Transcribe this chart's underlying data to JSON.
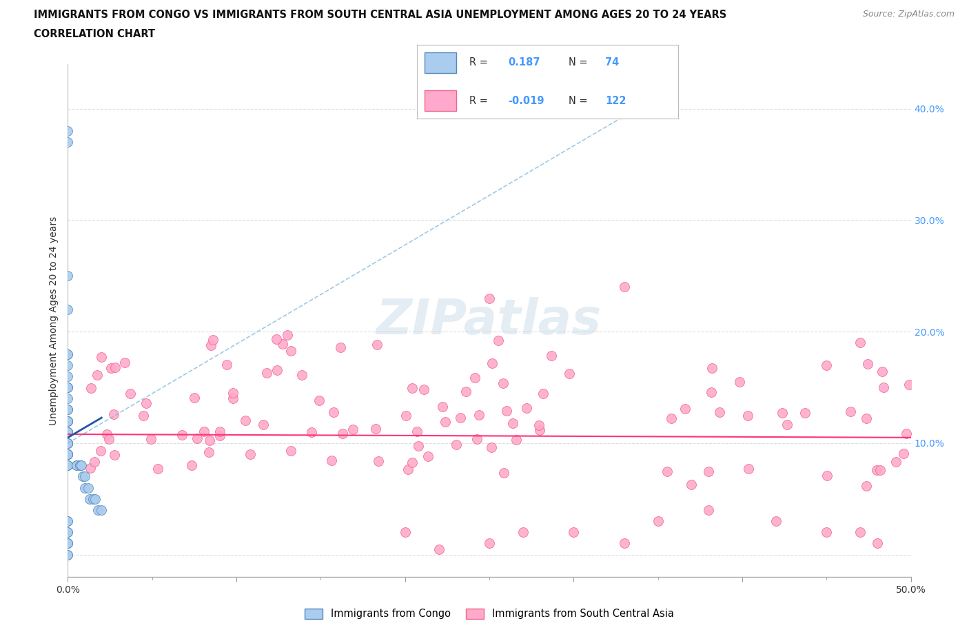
{
  "title_line1": "IMMIGRANTS FROM CONGO VS IMMIGRANTS FROM SOUTH CENTRAL ASIA UNEMPLOYMENT AMONG AGES 20 TO 24 YEARS",
  "title_line2": "CORRELATION CHART",
  "source": "Source: ZipAtlas.com",
  "ylabel": "Unemployment Among Ages 20 to 24 years",
  "xlim": [
    0.0,
    0.5
  ],
  "ylim": [
    -0.02,
    0.44
  ],
  "xticks": [
    0.0,
    0.1,
    0.2,
    0.3,
    0.4,
    0.5
  ],
  "xticklabels": [
    "0.0%",
    "",
    "",
    "",
    "",
    "50.0%"
  ],
  "yticks": [
    0.0,
    0.1,
    0.2,
    0.3,
    0.4
  ],
  "yticklabels_right": [
    "",
    "10.0%",
    "20.0%",
    "30.0%",
    "40.0%"
  ],
  "r_color": "#4499ff",
  "trendline_congo_dashed_color": "#88bbdd",
  "trendline_congo_solid_color": "#2255aa",
  "trendline_sca_color": "#ff3377",
  "background_color": "#ffffff",
  "grid_color": "#dddddd",
  "watermark": "ZIPatlas",
  "congo_scatter_color": "#aaccee",
  "congo_scatter_edge": "#5588bb",
  "sca_scatter_color": "#ffaacc",
  "sca_scatter_edge": "#ee6688",
  "legend_label_congo": "Immigrants from Congo",
  "legend_label_sca": "Immigrants from South Central Asia",
  "legend_R_congo": "0.187",
  "legend_N_congo": "74",
  "legend_R_sca": "-0.019",
  "legend_N_sca": "122",
  "title_fontsize": 10.5,
  "tick_fontsize": 10,
  "ylabel_fontsize": 10
}
